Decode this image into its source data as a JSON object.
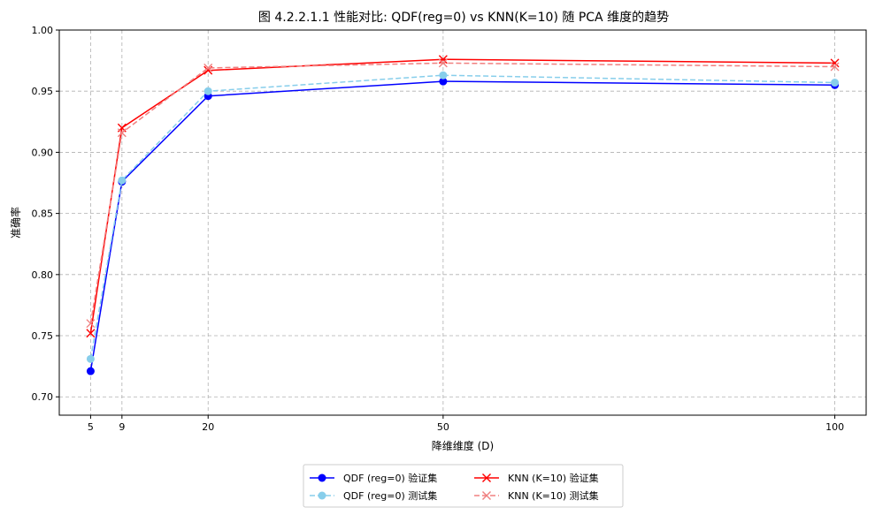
{
  "chart_data": {
    "type": "line",
    "title": "图 4.2.2.1.1 性能对比: QDF(reg=0) vs KNN(K=10) 随 PCA 维度的趋势",
    "xlabel": "降维维度 (D)",
    "ylabel": "准确率",
    "x": [
      5,
      9,
      20,
      50,
      100
    ],
    "xticks": [
      "5",
      "9",
      "20",
      "50",
      "100"
    ],
    "xlim": [
      1,
      104
    ],
    "ylim": [
      0.685,
      1.0
    ],
    "yticks": [
      "0.70",
      "0.75",
      "0.80",
      "0.85",
      "0.90",
      "0.95",
      "1.00"
    ],
    "ytick_values": [
      0.7,
      0.75,
      0.8,
      0.85,
      0.9,
      0.95,
      1.0
    ],
    "grid": true,
    "legend_position": "bottom-center-outside",
    "series": [
      {
        "name": "QDF (reg=0) 验证集",
        "values": [
          0.721,
          0.876,
          0.946,
          0.958,
          0.955
        ],
        "color": "#0000ff",
        "dash": "solid",
        "marker": "circle"
      },
      {
        "name": "QDF (reg=0) 测试集",
        "values": [
          0.731,
          0.877,
          0.95,
          0.963,
          0.957
        ],
        "color": "#87ceeb",
        "dash": "dashed",
        "marker": "circle"
      },
      {
        "name": "KNN (K=10) 验证集",
        "values": [
          0.752,
          0.92,
          0.967,
          0.976,
          0.973
        ],
        "color": "#ff0000",
        "dash": "solid",
        "marker": "x"
      },
      {
        "name": "KNN (K=10) 测试集",
        "values": [
          0.76,
          0.916,
          0.969,
          0.973,
          0.97
        ],
        "color": "#f08080",
        "dash": "dashed",
        "marker": "x"
      }
    ]
  }
}
